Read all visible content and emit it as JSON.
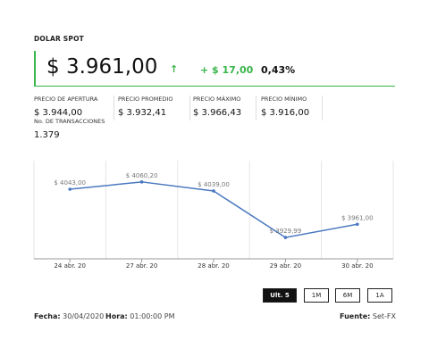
{
  "header": {
    "title": "DOLAR SPOT"
  },
  "quote": {
    "price": "$ 3.961,00",
    "arrow": "↑",
    "change": "+ $ 17,00",
    "percent": "0,43%"
  },
  "stats": [
    {
      "label": "PRECIO DE APERTURA",
      "value": "$ 3.944,00"
    },
    {
      "label": "PRECIO PROMEDIO",
      "value": "$ 3.932,41"
    },
    {
      "label": "PRECIO MÁXIMO",
      "value": "$ 3.966,43"
    },
    {
      "label": "PRECIO MÍNIMO",
      "value": "$ 3.916,00"
    }
  ],
  "transactions": {
    "label": "No. DE TRANSACCIONES",
    "value": "1.379"
  },
  "chart_data": {
    "type": "line",
    "categories": [
      "24 abr. 20",
      "27 abr. 20",
      "28 abr. 20",
      "29 abr. 20",
      "30 abr. 20"
    ],
    "series": [
      {
        "values": [
          4043.0,
          4060.2,
          4039.0,
          3929.99,
          3961.0
        ]
      }
    ],
    "data_labels": [
      "$ 4043,00",
      "$ 4060,20",
      "$ 4039,00",
      "$ 3929,99",
      "$ 3961,00"
    ],
    "ylim": [
      3880,
      4110
    ],
    "line_color": "#4a78c0",
    "grid": "vertical"
  },
  "ranges": [
    "Ult. 5",
    "1M",
    "6M",
    "1A"
  ],
  "footer": {
    "date_label": "Fecha:",
    "date_value": "30/04/2020",
    "time_label": "Hora:",
    "time_value": "01:00:00 PM",
    "source_label": "Fuente:",
    "source_value": "Set-FX"
  },
  "colors": {
    "accent": "#39b54a",
    "line": "#4a78c0"
  }
}
